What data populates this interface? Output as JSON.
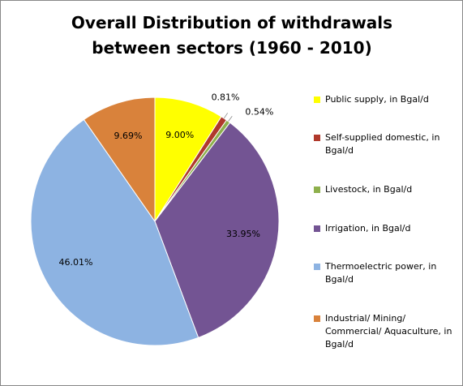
{
  "chart_data": {
    "type": "pie",
    "title": "Overall Distribution of withdrawals between sectors (1960 - 2010)",
    "categories": [
      "Public supply, in Bgal/d",
      "Self-supplied domestic, in Bgal/d",
      "Livestock, in Bgal/d",
      "Irrigation, in Bgal/d",
      "Thermoelectric power, in Bgal/d",
      "Industrial/ Mining/ Commercial/ Aquaculture, in Bgal/d"
    ],
    "values": [
      9.0,
      0.81,
      0.54,
      33.95,
      46.01,
      9.69
    ],
    "value_labels": [
      "9.00%",
      "0.81%",
      "0.54%",
      "33.95%",
      "46.01%",
      "9.69%"
    ],
    "colors": [
      "#ffff00",
      "#b0392b",
      "#8eb04c",
      "#735493",
      "#8db3e2",
      "#d9823b"
    ],
    "legend": "right"
  }
}
